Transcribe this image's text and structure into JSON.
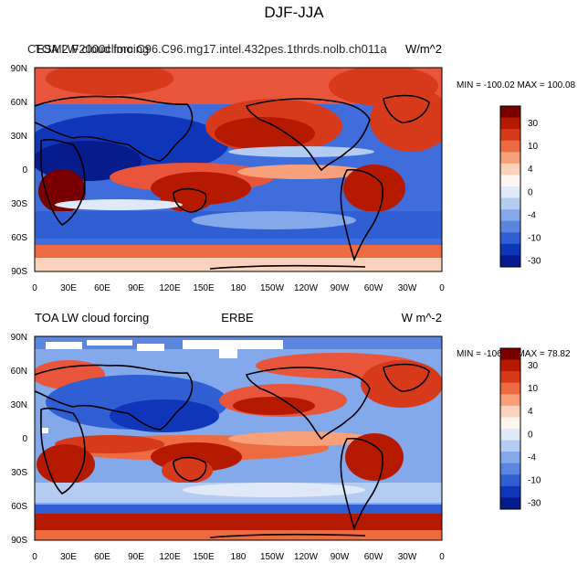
{
  "title": "DJF-JJA",
  "panels": [
    {
      "id": "model",
      "left_title": "TOA LW cloud forcing",
      "overlap_title": "CESM2 F2000climo C96.C96.mg17.intel.432pes.1thrds.nolb.ch011a",
      "center_title": "",
      "right_title": "W/m^2",
      "min_label": "MIN = -100.02",
      "max_label": "MAX = 100.08"
    },
    {
      "id": "obs",
      "left_title": "TOA LW cloud forcing",
      "center_title": "ERBE",
      "right_title": "W m^-2",
      "min_label": "MIN = -106.05",
      "max_label": "MAX =  78.82"
    }
  ],
  "lat_labels": [
    "90N",
    "60N",
    "30N",
    "0",
    "30S",
    "60S",
    "90S"
  ],
  "lon_labels": [
    "0",
    "30E",
    "60E",
    "90E",
    "120E",
    "150E",
    "180",
    "150W",
    "120W",
    "90W",
    "60W",
    "30W",
    "0"
  ],
  "colorbar": {
    "labels": [
      "30",
      "10",
      "4",
      "0",
      "-4",
      "-10",
      "-30"
    ],
    "colors": [
      "#7a0000",
      "#b51a00",
      "#d63a1a",
      "#ee6a40",
      "#f7a07a",
      "#fbd3bd",
      "#fdf6f0",
      "#dfe9f8",
      "#b4ccf2",
      "#84a9ea",
      "#5a86e0",
      "#2f5fd3",
      "#0f36b8",
      "#061b8c"
    ]
  },
  "colors": {
    "strong_positive": "#b51a00",
    "positive": "#e8553a",
    "neutral": "#f6f1ee",
    "negative": "#5a86e0",
    "strong_negative": "#0f36b8",
    "land_outline": "#000000"
  }
}
